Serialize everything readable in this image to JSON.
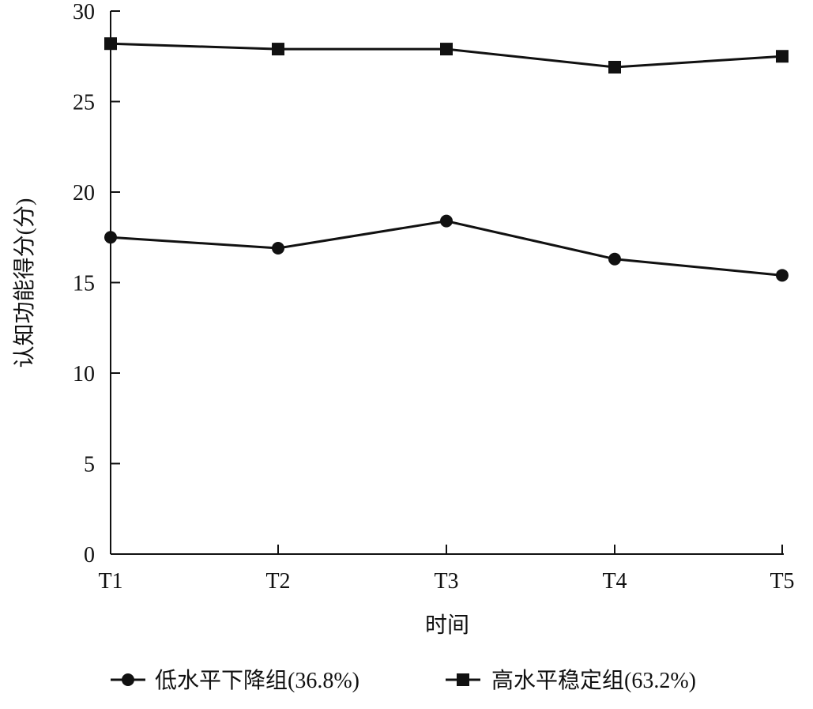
{
  "chart_data": {
    "type": "line",
    "title": "",
    "xlabel": "时间",
    "ylabel": "认知功能得分(分)",
    "categories": [
      "T1",
      "T2",
      "T3",
      "T4",
      "T5"
    ],
    "ylim": [
      0,
      30
    ],
    "yticks": [
      0,
      5,
      10,
      15,
      20,
      25,
      30
    ],
    "grid": false,
    "legend_position": "bottom",
    "series": [
      {
        "name": "低水平下降组(36.8%)",
        "marker": "circle",
        "color": "#111111",
        "values": [
          17.5,
          16.9,
          18.4,
          16.3,
          15.4
        ]
      },
      {
        "name": "高水平稳定组(63.2%)",
        "marker": "square",
        "color": "#111111",
        "values": [
          28.2,
          27.9,
          27.9,
          26.9,
          27.5
        ]
      }
    ]
  }
}
